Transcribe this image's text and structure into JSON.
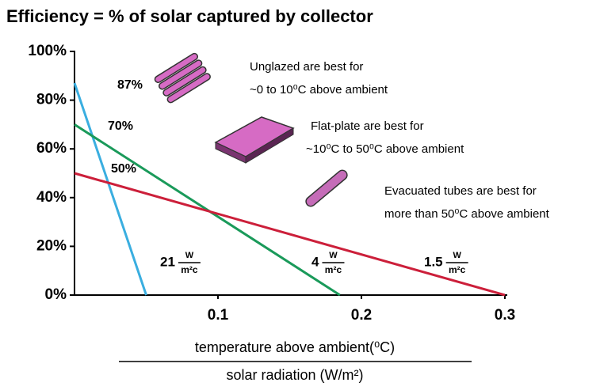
{
  "chart_data": {
    "type": "line",
    "title": "Efficiency = % of solar captured by collector",
    "xlim": [
      0,
      0.3
    ],
    "ylim": [
      0,
      100
    ],
    "xticks": [
      0.1,
      0.2,
      0.3
    ],
    "yticks": [
      {
        "value": 0,
        "label": "0%"
      },
      {
        "value": 20,
        "label": "20%"
      },
      {
        "value": 40,
        "label": "40%"
      },
      {
        "value": 60,
        "label": "60%"
      },
      {
        "value": 80,
        "label": "80%"
      },
      {
        "value": 100,
        "label": "100%"
      }
    ],
    "series": [
      {
        "color": "#3aaee0",
        "x": [
          0,
          0.05
        ],
        "values": [
          87,
          0
        ]
      },
      {
        "color": "#1a9a5a",
        "x": [
          0,
          0.185
        ],
        "values": [
          70,
          0
        ]
      },
      {
        "color": "#cc1f3a",
        "x": [
          0,
          0.3
        ],
        "values": [
          50,
          0
        ]
      }
    ],
    "start_labels": [
      "87%",
      "70%",
      "50%"
    ],
    "line_labels": [
      {
        "number": "21",
        "unit_top": "W",
        "unit_bottom": "m²c"
      },
      {
        "number": "4",
        "unit_top": "W",
        "unit_bottom": "m²c"
      },
      {
        "number": "1.5",
        "unit_top": "W",
        "unit_bottom": "m²c"
      }
    ],
    "notes": [
      {
        "lines": [
          "Unglazed are best for",
          "~0 to 10⁰C above ambient"
        ]
      },
      {
        "lines": [
          "Flat-plate are best for",
          "~10⁰C to 50⁰C above ambient"
        ]
      },
      {
        "lines": [
          "Evacuated tubes are best for",
          "more than 50⁰C above ambient"
        ]
      }
    ],
    "xlabel_numerator": "temperature above ambient(⁰C)",
    "xlabel_denominator": "solar radiation (W/m²)"
  }
}
